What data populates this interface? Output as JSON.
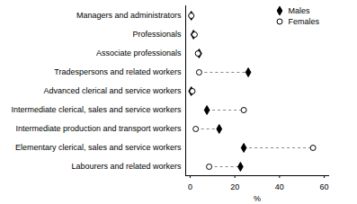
{
  "chart_data": {
    "type": "dot",
    "orientation": "horizontal",
    "categories": [
      "Managers and administrators",
      "Professionals",
      "Associate professionals",
      "Tradespersons and related workers",
      "Advanced clerical and service workers",
      "Intermediate clerical, sales and service workers",
      "Intermediate production and transport workers",
      "Elementary clerical, sales and service workers",
      "Labourers and related workers"
    ],
    "series": [
      {
        "name": "Males",
        "color": "#000000",
        "marker": "diamond",
        "values": [
          0.5,
          1.5,
          4,
          26,
          0.5,
          7.5,
          13,
          24,
          22.5
        ]
      },
      {
        "name": "Females",
        "color": "#000000",
        "marker": "open_circle",
        "values": [
          0.5,
          2,
          3.5,
          4,
          1,
          24,
          2.5,
          55,
          8.5
        ]
      }
    ],
    "xlabel": "%",
    "xlim": [
      -2,
      62
    ],
    "xticks": [
      0,
      20,
      40,
      60
    ],
    "grid": false,
    "legend": "top-right"
  }
}
